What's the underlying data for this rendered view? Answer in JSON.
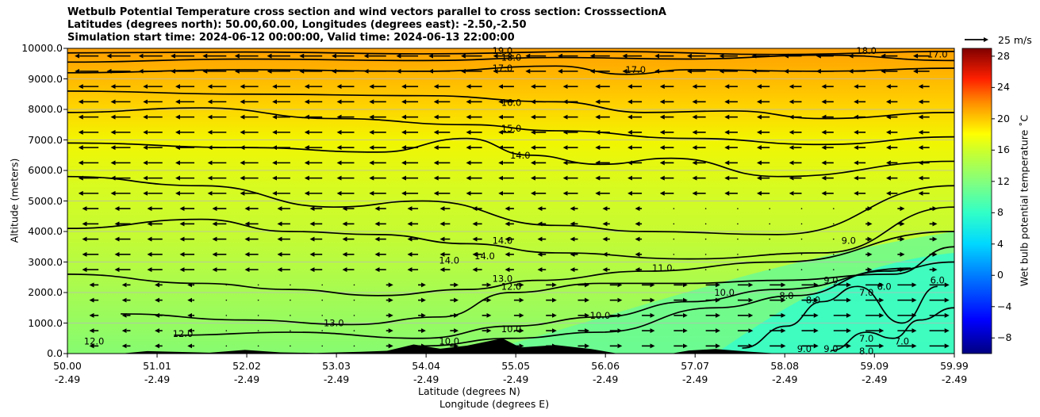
{
  "chart_data": {
    "type": "heatmap",
    "title_lines": [
      "Wetbulb Potential Temperature cross section and wind vectors parallel to cross section: CrosssectionA",
      "Latitudes (degrees north): 50.00,60.00, Longitudes (degrees east): -2.50,-2.50",
      "Simulation start time: 2024-06-12 00:00:00, Valid time: 2024-06-13 22:00:00"
    ],
    "xlabel_line1": "Latitude (degrees N)",
    "xlabel_line2": "Longitude (degrees E)",
    "ylabel": "Altitude (meters)",
    "x_tick_lat": [
      "50.00",
      "51.01",
      "52.02",
      "53.03",
      "54.04",
      "55.05",
      "56.06",
      "57.07",
      "58.08",
      "59.09",
      "59.99"
    ],
    "x_tick_lon": [
      "-2.49",
      "-2.49",
      "-2.49",
      "-2.49",
      "-2.49",
      "-2.49",
      "-2.49",
      "-2.49",
      "-2.49",
      "-2.49",
      "-2.49"
    ],
    "y_ticks": [
      "0.0",
      "1000.0",
      "2000.0",
      "3000.0",
      "4000.0",
      "5000.0",
      "6000.0",
      "7000.0",
      "8000.0",
      "9000.0",
      "10000.0"
    ],
    "ylim": [
      0,
      10000
    ],
    "colorbar_label": "Wet bulb potential temperature ˚C",
    "colorbar_ticks": [
      "−8",
      "−4",
      "0",
      "4",
      "8",
      "12",
      "16",
      "20",
      "24",
      "28"
    ],
    "colorbar_range": [
      -10,
      29
    ],
    "quiver_key_label": "25 m/s",
    "grid": "horizontal",
    "contours": [
      {
        "level": "19.0",
        "label": "19.0",
        "lat": 54.9,
        "alt": 9920
      },
      {
        "level": "18.0",
        "label": "18.0",
        "lat": 55.0,
        "alt": 9700
      },
      {
        "level": "18.0",
        "label": "18.0",
        "lat": 59.0,
        "alt": 9920
      },
      {
        "level": "17.0",
        "label": "17.0",
        "lat": 54.9,
        "alt": 9350
      },
      {
        "level": "17.0",
        "label": "17.0",
        "lat": 56.4,
        "alt": 9300
      },
      {
        "level": "16.0",
        "label": "16.0",
        "lat": 55.0,
        "alt": 8220
      },
      {
        "level": "15.0",
        "label": "15.0",
        "lat": 55.0,
        "alt": 7380
      },
      {
        "level": "14.0",
        "label": "14.0",
        "lat": 55.1,
        "alt": 6500
      },
      {
        "level": "14.0",
        "label": "14.0",
        "lat": 54.3,
        "alt": 3050
      },
      {
        "level": "14.0",
        "label": "14.0",
        "lat": 54.7,
        "alt": 3200
      },
      {
        "level": "14.0",
        "label": "14.0",
        "lat": 54.9,
        "alt": 3700
      },
      {
        "level": "13.0",
        "label": "13.0",
        "lat": 54.9,
        "alt": 2450
      },
      {
        "level": "13.0",
        "label": "13.0",
        "lat": 53.0,
        "alt": 1000
      },
      {
        "level": "12.0",
        "label": "12.0",
        "lat": 55.0,
        "alt": 2200
      },
      {
        "level": "12.0",
        "label": "12.0",
        "lat": 51.3,
        "alt": 650
      },
      {
        "level": "12.0",
        "label": "12.0",
        "lat": 50.3,
        "alt": 400
      },
      {
        "level": "11.0",
        "label": "11.0",
        "lat": 56.7,
        "alt": 2800
      },
      {
        "level": "10.0",
        "label": "10.0",
        "lat": 55.0,
        "alt": 800
      },
      {
        "level": "10.0",
        "label": "10.0",
        "lat": 56.0,
        "alt": 1250
      },
      {
        "level": "10.0",
        "label": "10.0",
        "lat": 57.4,
        "alt": 2000
      },
      {
        "level": "10.0",
        "label": "10.0",
        "lat": 54.3,
        "alt": 400
      },
      {
        "level": "9.0",
        "label": "9.0",
        "lat": 58.8,
        "alt": 3700
      },
      {
        "level": "9.0",
        "label": "9.0",
        "lat": 58.6,
        "alt": 2400
      },
      {
        "level": "9.0",
        "label": "9.0",
        "lat": 58.3,
        "alt": 150
      },
      {
        "level": "9.0",
        "label": "9.0",
        "lat": 58.6,
        "alt": 150
      },
      {
        "level": "8.0",
        "label": "8.0",
        "lat": 58.1,
        "alt": 1900
      },
      {
        "level": "8.0",
        "label": "8.0",
        "lat": 58.4,
        "alt": 1750
      },
      {
        "level": "8.0",
        "label": "8.0",
        "lat": 59.0,
        "alt": 80
      },
      {
        "level": "7.0",
        "label": "7.0",
        "lat": 59.0,
        "alt": 2000
      },
      {
        "level": "7.0",
        "label": "7.0",
        "lat": 59.0,
        "alt": 500
      },
      {
        "level": "7.0",
        "label": "7.0",
        "lat": 59.4,
        "alt": 400
      },
      {
        "level": "6.0",
        "label": "6.0",
        "lat": 59.2,
        "alt": 2200
      },
      {
        "level": "6.0",
        "label": "6.0",
        "lat": 59.8,
        "alt": 2400
      },
      {
        "level": "17.0",
        "label": "17.0",
        "lat": 59.8,
        "alt": 9800
      }
    ]
  }
}
